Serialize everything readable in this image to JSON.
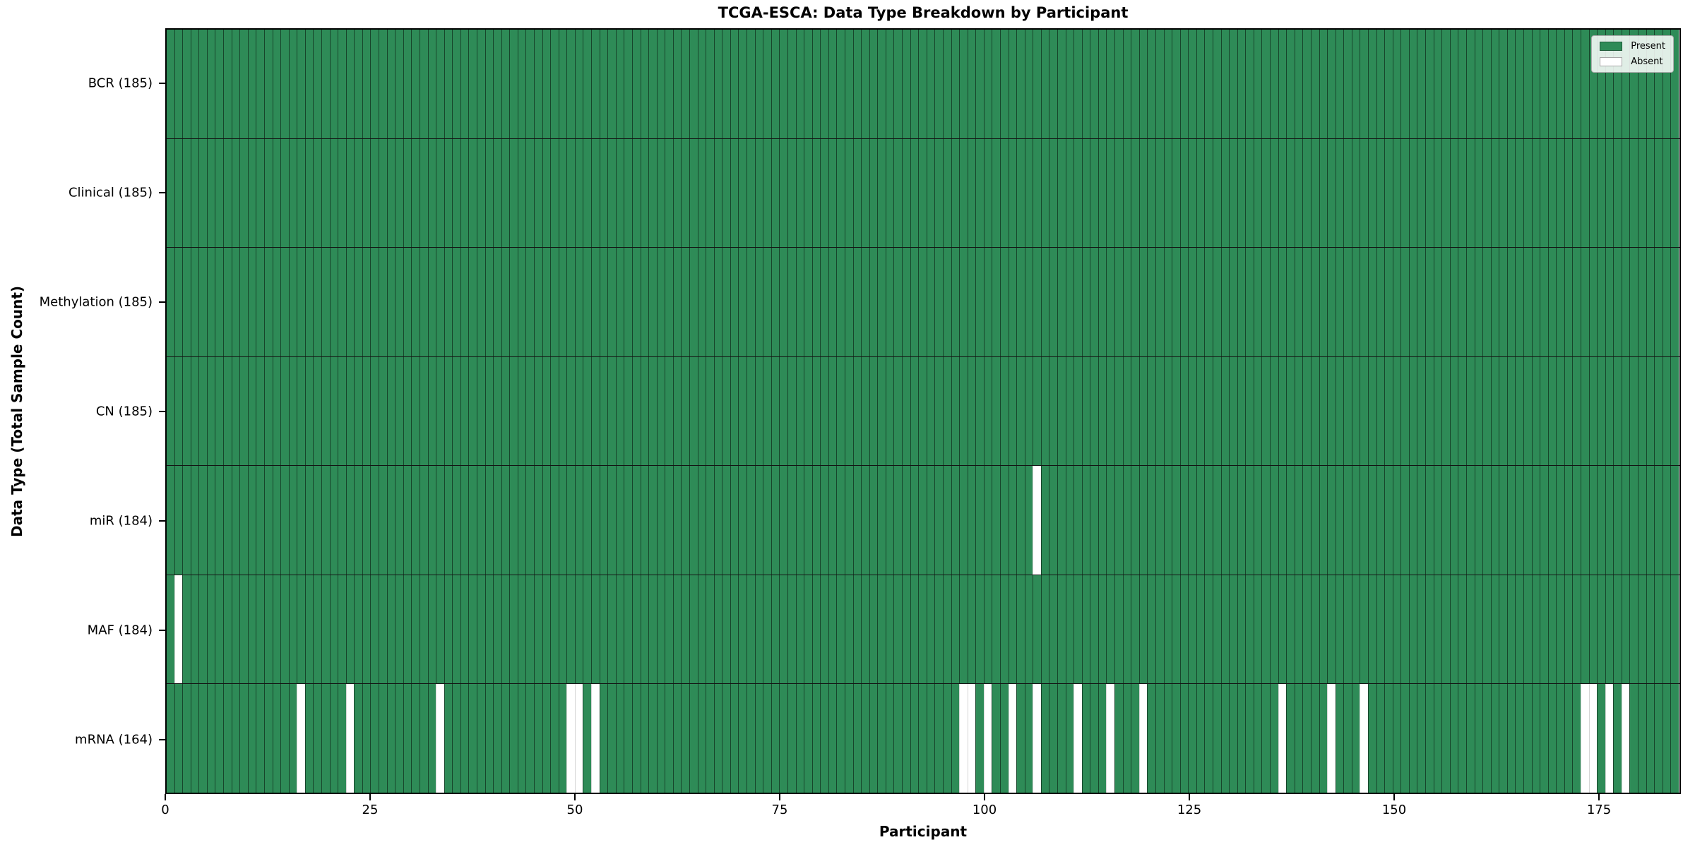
{
  "chart_data": {
    "type": "heatmap",
    "title": "TCGA-ESCA: Data Type Breakdown by Participant",
    "xlabel": "Participant",
    "ylabel": "Data Type (Total Sample Count)",
    "n_participants": 185,
    "xlim": [
      0,
      185
    ],
    "x_ticks": [
      0,
      25,
      50,
      75,
      100,
      125,
      150,
      175
    ],
    "grid": "per-cell vertical lines, black row separators",
    "legend_position": "upper right",
    "legend": [
      {
        "label": "Present",
        "color": "#2e8b57"
      },
      {
        "label": "Absent",
        "color": "#ffffff"
      }
    ],
    "colors": {
      "present": "#2e8b57",
      "absent": "#ffffff"
    },
    "rows": [
      {
        "label": "BCR (185)",
        "present_count": 185,
        "absent_participants": []
      },
      {
        "label": "Clinical (185)",
        "present_count": 185,
        "absent_participants": []
      },
      {
        "label": "Methylation (185)",
        "present_count": 185,
        "absent_participants": []
      },
      {
        "label": "CN (185)",
        "present_count": 185,
        "absent_participants": []
      },
      {
        "label": "miR (184)",
        "present_count": 184,
        "absent_participants": [
          106
        ]
      },
      {
        "label": "MAF (184)",
        "present_count": 184,
        "absent_participants": [
          1
        ]
      },
      {
        "label": "mRNA (164)",
        "present_count": 164,
        "absent_participants": [
          16,
          22,
          33,
          49,
          50,
          52,
          97,
          98,
          100,
          103,
          106,
          111,
          115,
          119,
          136,
          142,
          146,
          173,
          174,
          176,
          178
        ]
      }
    ]
  }
}
